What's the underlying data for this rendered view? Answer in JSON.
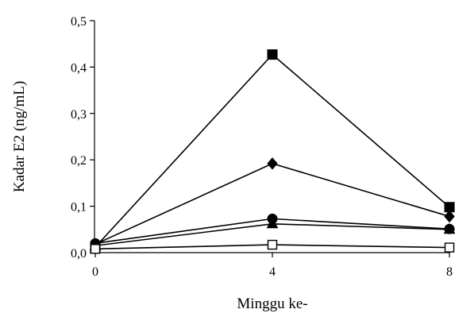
{
  "chart_data": {
    "type": "line",
    "xlabel": "Minggu ke-",
    "ylabel": "Kadar E2 (ng/mL)",
    "x": [
      0,
      4,
      8
    ],
    "xticks": [
      "0",
      "4",
      "8"
    ],
    "yticks": [
      "0,0",
      "0,1",
      "0,2",
      "0,3",
      "0,4",
      "0,5"
    ],
    "xlim": [
      0,
      8
    ],
    "ylim": [
      0,
      0.5
    ],
    "grid": false,
    "series": [
      {
        "marker": "square-filled",
        "values": [
          0.012,
          0.427,
          0.098
        ]
      },
      {
        "marker": "diamond-filled",
        "values": [
          0.018,
          0.192,
          0.078
        ]
      },
      {
        "marker": "circle-filled",
        "values": [
          0.02,
          0.073,
          0.051
        ]
      },
      {
        "marker": "triangle-filled",
        "values": [
          0.015,
          0.062,
          0.05
        ]
      },
      {
        "marker": "square-open",
        "values": [
          0.008,
          0.017,
          0.011
        ]
      }
    ],
    "colors": {
      "line": "#000000",
      "marker_fill": "#000000",
      "open_fill": "#ffffff"
    }
  }
}
